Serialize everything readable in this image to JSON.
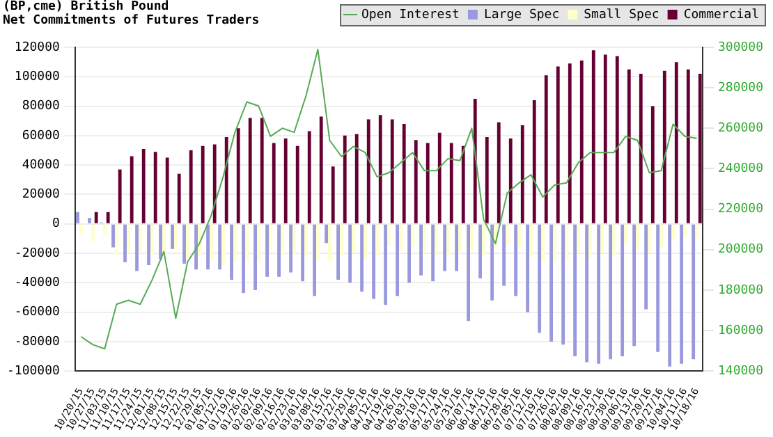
{
  "chart_data": {
    "type": "bar",
    "title": "(BP,cme) British Pound",
    "subtitle": "Net Commitments of Futures Traders",
    "categories": [
      "10/20/15",
      "10/27/15",
      "11/03/15",
      "11/10/15",
      "11/17/15",
      "11/24/15",
      "12/01/15",
      "12/08/15",
      "12/15/15",
      "12/22/15",
      "12/29/15",
      "01/05/16",
      "01/12/16",
      "01/19/16",
      "01/26/16",
      "02/02/16",
      "02/09/16",
      "02/16/16",
      "02/23/16",
      "03/01/16",
      "03/08/16",
      "03/15/16",
      "03/22/16",
      "03/29/16",
      "04/05/16",
      "04/12/16",
      "04/19/16",
      "04/26/16",
      "05/03/16",
      "05/10/16",
      "05/17/16",
      "05/24/16",
      "05/31/16",
      "06/07/16",
      "06/14/16",
      "06/21/16",
      "06/28/16",
      "07/05/16",
      "07/12/16",
      "07/19/16",
      "07/26/16",
      "08/02/16",
      "08/09/16",
      "08/16/16",
      "08/23/16",
      "08/30/16",
      "09/06/16",
      "09/13/16",
      "09/20/16",
      "09/27/16",
      "10/04/16",
      "10/11/16",
      "10/18/16"
    ],
    "series": [
      {
        "name": "Large Spec",
        "color": "#9999dd",
        "values": [
          8000,
          4000,
          1000,
          -16000,
          -26000,
          -32000,
          -28000,
          -24000,
          -17000,
          -27000,
          -31000,
          -31000,
          -31000,
          -38000,
          -47000,
          -45000,
          -36000,
          -36000,
          -33000,
          -39000,
          -49000,
          -13000,
          -38000,
          -40000,
          -46000,
          -51000,
          -55000,
          -49000,
          -40000,
          -35000,
          -39000,
          -32000,
          -32000,
          -66000,
          -37000,
          -52000,
          -42000,
          -49000,
          -60000,
          -74000,
          -80000,
          -82000,
          -90000,
          -94000,
          -95000,
          -92000,
          -90000,
          -83000,
          -58000,
          -87000,
          -97000,
          -95000,
          -92000
        ]
      },
      {
        "name": "Small Spec",
        "color": "#ffffcc",
        "values": [
          -7000,
          -12000,
          -8000,
          -21000,
          -20000,
          -19000,
          -21000,
          -21000,
          -17000,
          -23000,
          -22000,
          -24000,
          -28000,
          -26000,
          -25000,
          -26000,
          -18000,
          -21000,
          -20000,
          -22000,
          -24000,
          -25000,
          -22000,
          -20000,
          -24000,
          -22000,
          -15000,
          -18000,
          -16000,
          -20000,
          -22000,
          -21000,
          -19000,
          -18000,
          -22000,
          -16000,
          -14000,
          -17000,
          -23000,
          -26000,
          -26000,
          -25000,
          -20000,
          -23000,
          -20000,
          -22000,
          -14000,
          -18000,
          -20000,
          -16000,
          -11000,
          -9000,
          -10000
        ]
      },
      {
        "name": "Commercial",
        "color": "#660033",
        "values": [
          0,
          8000,
          8000,
          37000,
          46000,
          51000,
          49000,
          45000,
          34000,
          50000,
          53000,
          54000,
          59000,
          65000,
          72000,
          72000,
          55000,
          58000,
          53000,
          63000,
          73000,
          39000,
          60000,
          61000,
          71000,
          74000,
          71000,
          68000,
          57000,
          55000,
          62000,
          55000,
          53000,
          85000,
          59000,
          69000,
          58000,
          67000,
          84000,
          101000,
          107000,
          109000,
          111000,
          118000,
          115000,
          114000,
          105000,
          102000,
          80000,
          104000,
          110000,
          105000,
          102000
        ]
      },
      {
        "name": "Open Interest",
        "type": "line",
        "axis": "y2",
        "color": "#55aa55",
        "values": [
          157000,
          153000,
          151000,
          173000,
          175000,
          173000,
          185000,
          199000,
          166000,
          194000,
          203000,
          217000,
          236000,
          258000,
          273000,
          271000,
          256000,
          260000,
          258000,
          276000,
          299000,
          254000,
          246000,
          251000,
          248000,
          236000,
          238000,
          243000,
          248000,
          239000,
          239000,
          245000,
          244000,
          260000,
          215000,
          203000,
          228000,
          233000,
          237000,
          226000,
          232000,
          233000,
          243000,
          248000,
          248000,
          248000,
          256000,
          254000,
          238000,
          239000,
          262000,
          256000,
          255000
        ]
      }
    ],
    "ylim": [
      -100000,
      120000
    ],
    "yticks": [
      -100000,
      -80000,
      -60000,
      -40000,
      -20000,
      0,
      20000,
      40000,
      60000,
      80000,
      100000,
      120000
    ],
    "y2lim": [
      140000,
      300000
    ],
    "y2ticks": [
      140000,
      160000,
      180000,
      200000,
      220000,
      240000,
      260000,
      280000,
      300000
    ],
    "grid": "y",
    "legend": "top right",
    "marker": "none",
    "line_style": "solid"
  }
}
